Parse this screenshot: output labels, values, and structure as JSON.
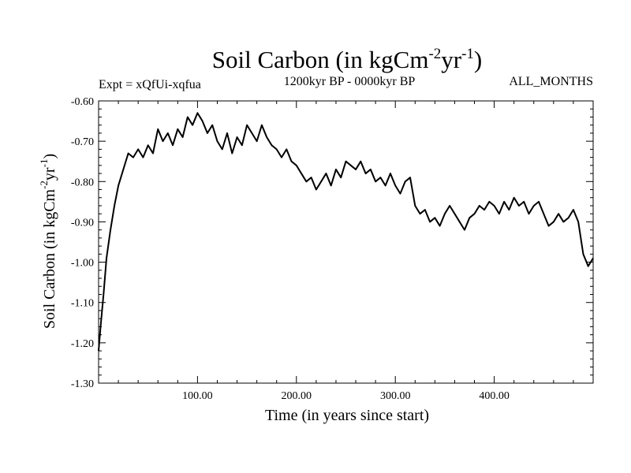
{
  "chart_data": {
    "type": "line",
    "title": {
      "main": "Soil Carbon (in kgCm",
      "sup1": "-2",
      "mid": "yr",
      "sup2": "-1",
      "end": ")"
    },
    "ylabel": {
      "main": "Soil Carbon (in kgCm",
      "sup1": "-2",
      "mid": "yr",
      "sup2": "-1",
      "end": ")"
    },
    "xlabel": "Time (in years since start)",
    "subtitle_left": "Expt = xQfUi-xqfua",
    "subtitle_center": "1200kyr BP - 0000kyr BP",
    "subtitle_right": "ALL_MONTHS",
    "xlim": [
      0,
      500
    ],
    "ylim": [
      -1.3,
      -0.6
    ],
    "x_major_ticks": [
      100,
      200,
      300,
      400
    ],
    "x_tick_labels": [
      "100.00",
      "200.00",
      "300.00",
      "400.00"
    ],
    "y_major_ticks": [
      -0.6,
      -0.7,
      -0.8,
      -0.9,
      -1.0,
      -1.1,
      -1.2,
      -1.3
    ],
    "y_tick_labels": [
      "-0.60",
      "-0.70",
      "-0.80",
      "-0.90",
      "-1.00",
      "-1.10",
      "-1.20",
      "-1.30"
    ],
    "series": [
      {
        "name": "Soil Carbon",
        "color": "#000000",
        "x": [
          0,
          2,
          5,
          8,
          12,
          16,
          20,
          25,
          30,
          35,
          40,
          45,
          50,
          55,
          60,
          65,
          70,
          75,
          80,
          85,
          90,
          95,
          100,
          105,
          110,
          115,
          120,
          125,
          130,
          135,
          140,
          145,
          150,
          155,
          160,
          165,
          170,
          175,
          180,
          185,
          190,
          195,
          200,
          205,
          210,
          215,
          220,
          225,
          230,
          235,
          240,
          245,
          250,
          255,
          260,
          265,
          270,
          275,
          280,
          285,
          290,
          295,
          300,
          305,
          310,
          315,
          320,
          325,
          330,
          335,
          340,
          345,
          350,
          355,
          360,
          365,
          370,
          375,
          380,
          385,
          390,
          395,
          400,
          405,
          410,
          415,
          420,
          425,
          430,
          435,
          440,
          445,
          450,
          455,
          460,
          465,
          470,
          475,
          480,
          485,
          490,
          495,
          500
        ],
        "y": [
          -1.22,
          -1.16,
          -1.08,
          -0.99,
          -0.92,
          -0.86,
          -0.81,
          -0.77,
          -0.73,
          -0.74,
          -0.72,
          -0.74,
          -0.71,
          -0.73,
          -0.67,
          -0.7,
          -0.68,
          -0.71,
          -0.67,
          -0.69,
          -0.64,
          -0.66,
          -0.63,
          -0.65,
          -0.68,
          -0.66,
          -0.7,
          -0.72,
          -0.68,
          -0.73,
          -0.69,
          -0.71,
          -0.66,
          -0.68,
          -0.7,
          -0.66,
          -0.69,
          -0.71,
          -0.72,
          -0.74,
          -0.72,
          -0.75,
          -0.76,
          -0.78,
          -0.8,
          -0.79,
          -0.82,
          -0.8,
          -0.78,
          -0.81,
          -0.77,
          -0.79,
          -0.75,
          -0.76,
          -0.77,
          -0.75,
          -0.78,
          -0.77,
          -0.8,
          -0.79,
          -0.81,
          -0.78,
          -0.81,
          -0.83,
          -0.8,
          -0.79,
          -0.86,
          -0.88,
          -0.87,
          -0.9,
          -0.89,
          -0.91,
          -0.88,
          -0.86,
          -0.88,
          -0.9,
          -0.92,
          -0.89,
          -0.88,
          -0.86,
          -0.87,
          -0.85,
          -0.86,
          -0.88,
          -0.85,
          -0.87,
          -0.84,
          -0.86,
          -0.85,
          -0.88,
          -0.86,
          -0.85,
          -0.88,
          -0.91,
          -0.9,
          -0.88,
          -0.9,
          -0.89,
          -0.87,
          -0.9,
          -0.98,
          -1.01,
          -0.99
        ]
      }
    ]
  }
}
